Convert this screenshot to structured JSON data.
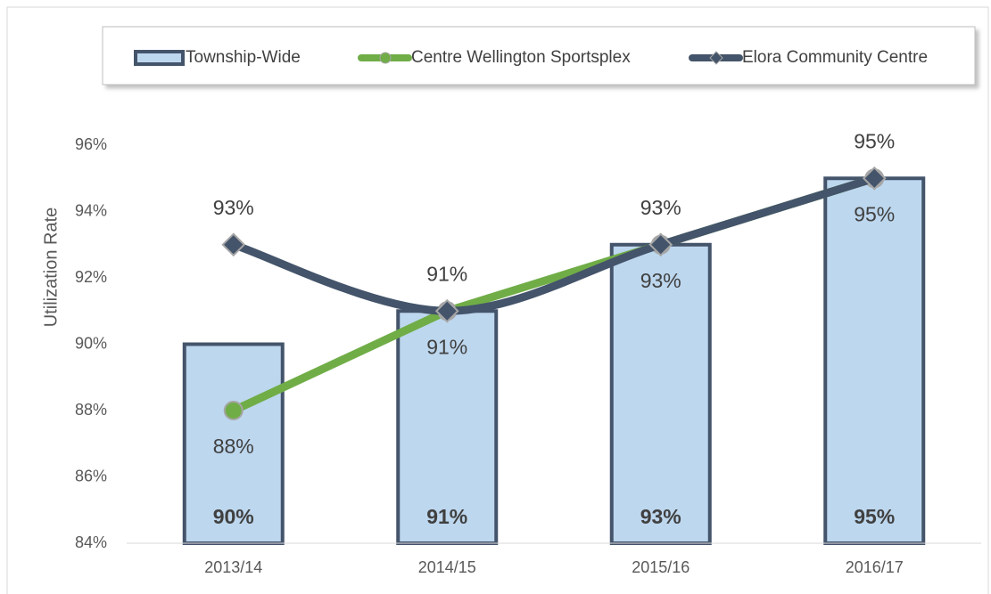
{
  "chart_data": {
    "type": "bar",
    "y_label": "Utilization Rate",
    "categories": [
      "2013/14",
      "2014/15",
      "2015/16",
      "2016/17"
    ],
    "series": [
      {
        "name": "Township-Wide",
        "type": "bar",
        "color": "#bdd7ee",
        "edge_color": "#44546a",
        "values": [
          90,
          91,
          93,
          95
        ],
        "value_labels": [
          "90%",
          "91%",
          "93%",
          "95%"
        ]
      },
      {
        "name": "Centre Wellington Sportsplex",
        "type": "line",
        "marker": "circle",
        "color": "#70ad47",
        "values": [
          88,
          91,
          93,
          95
        ],
        "value_labels": [
          "88%",
          "91%",
          "93%",
          "95%"
        ]
      },
      {
        "name": "Elora Community Centre",
        "type": "line",
        "marker": "diamond",
        "smooth": true,
        "color": "#44546a",
        "values": [
          93,
          91,
          93,
          95
        ],
        "value_labels": [
          "93%",
          "91%",
          "93%",
          "95%"
        ]
      }
    ],
    "ylim": [
      84,
      96
    ],
    "yticks": [
      {
        "value": 84,
        "label": "84%"
      },
      {
        "value": 86,
        "label": "86%"
      },
      {
        "value": 88,
        "label": "88%"
      },
      {
        "value": 90,
        "label": "90%"
      },
      {
        "value": 92,
        "label": "92%"
      },
      {
        "value": 94,
        "label": "94%"
      },
      {
        "value": 96,
        "label": "96%"
      }
    ],
    "grid": false,
    "legend": "top"
  }
}
